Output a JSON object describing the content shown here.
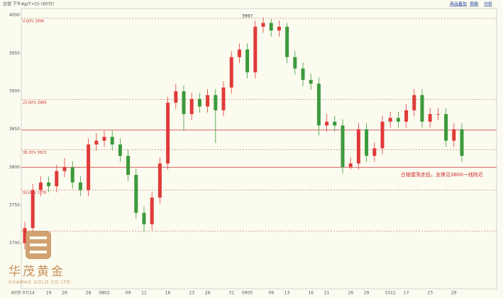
{
  "header": {
    "title": "白银 下午Ag(T+D) (60分)",
    "buttons": [
      "商品叠加",
      "周期",
      "分析"
    ]
  },
  "logo": {
    "name": "华茂黄金",
    "subtitle": "HUAMAO GOLD CO.LTD"
  },
  "chart_data": {
    "type": "candlestick",
    "categories": [
      "60分 07/14",
      null,
      null,
      "19",
      null,
      "26",
      null,
      null,
      "28",
      null,
      "0802",
      null,
      null,
      "09",
      null,
      "11",
      null,
      null,
      "16",
      null,
      null,
      "23",
      null,
      "26",
      null,
      null,
      "31",
      null,
      "0905",
      null,
      null,
      "09",
      null,
      "13",
      null,
      null,
      "16",
      null,
      "21",
      null,
      null,
      "26",
      null,
      "29",
      null,
      null,
      "1012",
      null,
      "17",
      null,
      null,
      "23",
      null,
      null,
      "29",
      null
    ],
    "open": [
      3700,
      3720,
      3770,
      3780,
      3775,
      3795,
      3800,
      3780,
      3770,
      3830,
      3835,
      3840,
      3830,
      3815,
      3790,
      3740,
      3725,
      3760,
      3805,
      3885,
      3900,
      3870,
      3890,
      3880,
      3895,
      3875,
      3905,
      3945,
      3955,
      3925,
      3985,
      3990,
      3980,
      3985,
      3945,
      3930,
      3915,
      3910,
      3855,
      3860,
      3855,
      3800,
      3805,
      3850,
      3815,
      3825,
      3860,
      3865,
      3860,
      3875,
      3895,
      3860,
      3870,
      3870,
      3835,
      3850
    ],
    "high": [
      3728,
      3778,
      3788,
      3788,
      3803,
      3812,
      3808,
      3788,
      3838,
      3845,
      3848,
      3848,
      3838,
      3823,
      3798,
      3748,
      3768,
      3813,
      3893,
      3910,
      3908,
      3898,
      3898,
      3903,
      3903,
      3913,
      3953,
      3963,
      3963,
      3993,
      3997,
      3995,
      3993,
      3990,
      3953,
      3938,
      3923,
      3918,
      3870,
      3868,
      3863,
      3813,
      3858,
      3858,
      3833,
      3868,
      3873,
      3873,
      3883,
      3903,
      3903,
      3878,
      3878,
      3878,
      3858,
      3858
    ],
    "low": [
      3692,
      3712,
      3762,
      3767,
      3767,
      3787,
      3772,
      3762,
      3762,
      3822,
      3827,
      3822,
      3807,
      3782,
      3732,
      3715,
      3717,
      3752,
      3797,
      3877,
      3848,
      3862,
      3872,
      3872,
      3832,
      3867,
      3897,
      3937,
      3917,
      3917,
      3977,
      3972,
      3972,
      3937,
      3922,
      3907,
      3902,
      3842,
      3847,
      3847,
      3792,
      3797,
      3797,
      3807,
      3807,
      3817,
      3852,
      3852,
      3852,
      3867,
      3852,
      3852,
      3862,
      3827,
      3827,
      3807
    ],
    "close": [
      3720,
      3770,
      3780,
      3775,
      3795,
      3800,
      3780,
      3770,
      3830,
      3835,
      3840,
      3830,
      3815,
      3790,
      3740,
      3725,
      3760,
      3805,
      3885,
      3900,
      3870,
      3890,
      3880,
      3895,
      3875,
      3905,
      3945,
      3955,
      3925,
      3985,
      3990,
      3980,
      3985,
      3945,
      3930,
      3915,
      3910,
      3855,
      3860,
      3855,
      3800,
      3805,
      3850,
      3815,
      3825,
      3860,
      3865,
      3860,
      3875,
      3895,
      3860,
      3870,
      3870,
      3835,
      3850,
      3815
    ],
    "up_color": "#e03a3a",
    "down_color": "#3c9a3c",
    "ylim": [
      3640,
      4009
    ],
    "yticks": [
      3700,
      3750,
      3800,
      3850,
      3900,
      3950,
      4000
    ],
    "fib_levels": [
      {
        "value": 3996,
        "label": "0.00% 3996"
      },
      {
        "value": 3889,
        "label": "23.60% 3889"
      },
      {
        "value": 3823,
        "label": "38.20% 3823"
      },
      {
        "value": 3770,
        "label": "50.00% 3770"
      },
      {
        "value": 3716,
        "label": null
      }
    ],
    "support_lines": [
      3849,
      3800
    ],
    "annotation": "白银震荡走低，支撑见3800一线附近",
    "peak_index": 30
  }
}
